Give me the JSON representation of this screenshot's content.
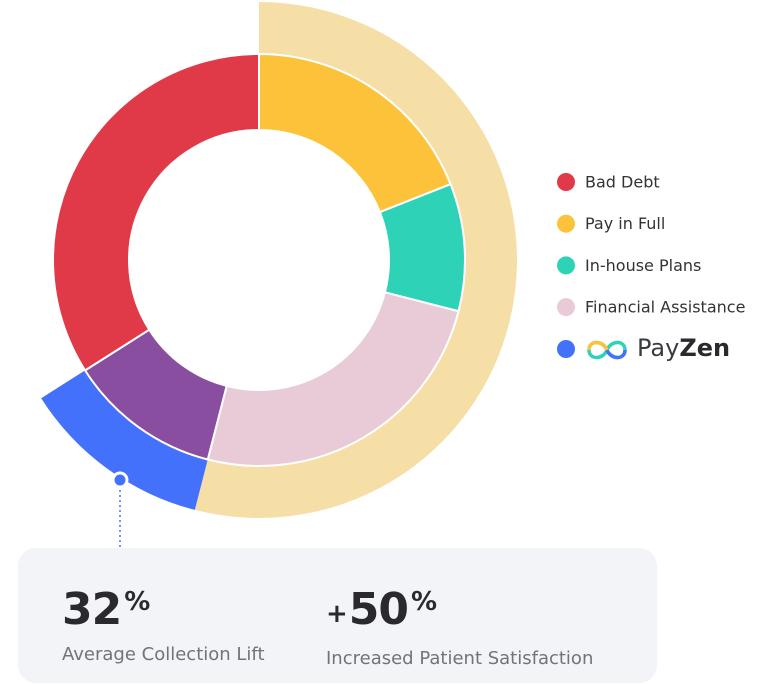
{
  "chart_data": {
    "type": "donut",
    "rings": [
      {
        "values": [
          19,
          10,
          25,
          12,
          34
        ],
        "colors": [
          "#fcc33a",
          "#2ed3b7",
          "#e8cbd6",
          "#8a4ea0",
          "#e03a48"
        ]
      },
      {
        "values": [
          54,
          12
        ],
        "colors": [
          "#f6dfa6",
          "#4471fb"
        ]
      }
    ],
    "legend": [
      {
        "label": "Bad Debt",
        "color": "#e03a48"
      },
      {
        "label": "Pay in Full",
        "color": "#fcc33a"
      },
      {
        "label": "In-house Plans",
        "color": "#2ed3b7"
      },
      {
        "label": "Financial Assistance",
        "color": "#e8cbd6"
      }
    ],
    "brand": {
      "name_parts": [
        "Pay",
        "Zen"
      ],
      "color": "#4471fb"
    }
  },
  "stats": [
    {
      "value": 32,
      "unit": "%",
      "label": "Average Collection Lift"
    },
    {
      "prefix": "+",
      "value": 50,
      "unit": "%",
      "label": "Increased Patient Satisfaction"
    }
  ]
}
